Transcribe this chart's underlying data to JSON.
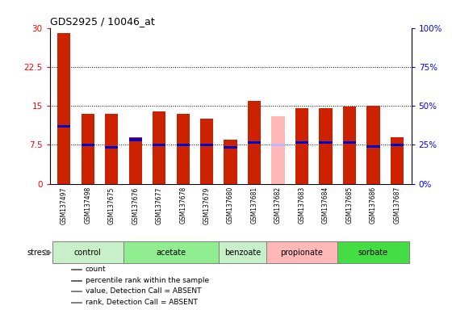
{
  "title": "GDS2925 / 10046_at",
  "samples": [
    "GSM137497",
    "GSM137498",
    "GSM137675",
    "GSM137676",
    "GSM137677",
    "GSM137678",
    "GSM137679",
    "GSM137680",
    "GSM137681",
    "GSM137682",
    "GSM137683",
    "GSM137684",
    "GSM137685",
    "GSM137686",
    "GSM137687"
  ],
  "count_values": [
    29.0,
    13.5,
    13.5,
    9.0,
    14.0,
    13.5,
    12.5,
    8.5,
    16.0,
    13.0,
    14.5,
    14.5,
    14.8,
    15.0,
    9.0
  ],
  "rank_values": [
    11.0,
    7.5,
    7.0,
    8.5,
    7.5,
    7.5,
    7.5,
    7.0,
    8.0,
    7.5,
    8.0,
    8.0,
    8.0,
    7.2,
    7.5
  ],
  "count_absent": [
    false,
    false,
    false,
    false,
    false,
    false,
    false,
    false,
    false,
    true,
    false,
    false,
    false,
    false,
    false
  ],
  "rank_absent": [
    false,
    false,
    false,
    false,
    false,
    false,
    false,
    false,
    false,
    true,
    false,
    false,
    false,
    false,
    false
  ],
  "groups": [
    {
      "label": "control",
      "indices": [
        0,
        1,
        2
      ],
      "color": "#c8f0c8"
    },
    {
      "label": "acetate",
      "indices": [
        3,
        4,
        5,
        6
      ],
      "color": "#90ee90"
    },
    {
      "label": "benzoate",
      "indices": [
        7,
        8
      ],
      "color": "#c8f0c8"
    },
    {
      "label": "propionate",
      "indices": [
        9,
        10,
        11
      ],
      "color": "#ffb8b8"
    },
    {
      "label": "sorbate",
      "indices": [
        12,
        13,
        14
      ],
      "color": "#44dd44"
    }
  ],
  "ylim_left": [
    0,
    30
  ],
  "ylim_right": [
    0,
    100
  ],
  "yticks_left": [
    0,
    7.5,
    15,
    22.5,
    30
  ],
  "yticks_right": [
    0,
    25,
    50,
    75,
    100
  ],
  "yticklabels_left": [
    "0",
    "7.5",
    "15",
    "22.5",
    "30"
  ],
  "yticklabels_right": [
    "0%",
    "25%",
    "50%",
    "75%",
    "100%"
  ],
  "bar_color_normal": "#cc2200",
  "bar_color_absent": "#ffb8b8",
  "rank_color_normal": "#0000cc",
  "rank_color_absent": "#c0b8ff",
  "bar_width": 0.55,
  "stress_label": "stress",
  "legend_items": [
    {
      "label": "count",
      "color": "#cc2200"
    },
    {
      "label": "percentile rank within the sample",
      "color": "#0000cc"
    },
    {
      "label": "value, Detection Call = ABSENT",
      "color": "#ffb8b8"
    },
    {
      "label": "rank, Detection Call = ABSENT",
      "color": "#c8c0f8"
    }
  ],
  "plot_bg": "#e8e8e8",
  "xlabel_bg": "#d8d8d8"
}
